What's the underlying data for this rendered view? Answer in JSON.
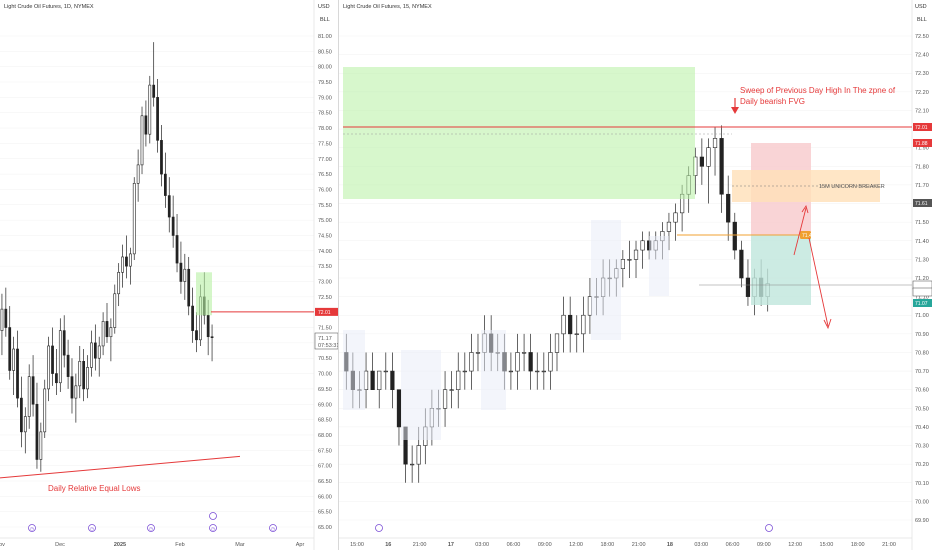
{
  "left_chart": {
    "title": "Light Crude Oil Futures, 1D, NYMEX",
    "currency": "USD",
    "unit": "BLL",
    "y_ticks": [
      "81.00",
      "80.50",
      "80.00",
      "79.50",
      "79.00",
      "78.50",
      "78.00",
      "77.50",
      "77.00",
      "76.50",
      "76.00",
      "75.50",
      "75.00",
      "74.50",
      "74.00",
      "73.50",
      "73.00",
      "72.50",
      "72.00",
      "71.50",
      "71.00",
      "70.50",
      "70.00",
      "69.50",
      "69.00",
      "68.50",
      "68.00",
      "67.50",
      "67.00",
      "66.50",
      "66.00",
      "65.50",
      "65.00"
    ],
    "x_ticks": [
      "Nov",
      "Dec",
      "2025",
      "Feb",
      "Mar",
      "Apr"
    ],
    "price_badges": [
      {
        "text": "72.01",
        "color": "#e5393a"
      },
      {
        "text": "71.17",
        "color": "#ffffff"
      },
      {
        "text": "07:53:31",
        "color": "#ffffff"
      }
    ],
    "level_line_color": "#e5393a",
    "annotation": "Daily Relative Equal Lows",
    "chart_data": {
      "type": "candlestick",
      "title": "Light Crude Oil Futures, 1D, NYMEX",
      "ylabel": "USD",
      "ylim": [
        65.0,
        81.0
      ],
      "candles": [
        [
          71.4,
          72.6,
          70.6,
          72.1
        ],
        [
          72.1,
          72.8,
          71.2,
          71.5
        ],
        [
          71.5,
          72.2,
          69.8,
          70.1
        ],
        [
          70.1,
          71.2,
          69.3,
          70.8
        ],
        [
          70.8,
          71.4,
          68.9,
          69.2
        ],
        [
          69.2,
          69.9,
          67.6,
          68.1
        ],
        [
          68.1,
          68.9,
          67.4,
          68.6
        ],
        [
          68.6,
          70.3,
          68.2,
          69.9
        ],
        [
          69.9,
          70.6,
          68.6,
          69.0
        ],
        [
          69.0,
          69.7,
          66.9,
          67.2
        ],
        [
          67.2,
          68.4,
          66.8,
          68.1
        ],
        [
          68.1,
          69.8,
          67.9,
          69.5
        ],
        [
          69.5,
          71.2,
          69.1,
          70.9
        ],
        [
          70.9,
          71.5,
          69.6,
          70.0
        ],
        [
          70.0,
          70.8,
          69.3,
          69.7
        ],
        [
          69.7,
          71.8,
          69.4,
          71.4
        ],
        [
          71.4,
          71.9,
          70.2,
          70.6
        ],
        [
          70.6,
          71.1,
          69.5,
          69.9
        ],
        [
          69.9,
          70.5,
          68.7,
          69.2
        ],
        [
          69.2,
          70.0,
          68.4,
          69.6
        ],
        [
          69.6,
          70.9,
          69.2,
          70.4
        ],
        [
          70.4,
          70.8,
          69.1,
          69.5
        ],
        [
          69.5,
          70.6,
          69.2,
          70.2
        ],
        [
          70.2,
          71.4,
          69.9,
          71.0
        ],
        [
          71.0,
          71.6,
          70.1,
          70.5
        ],
        [
          70.5,
          71.2,
          69.9,
          70.9
        ],
        [
          70.9,
          72.0,
          70.6,
          71.7
        ],
        [
          71.7,
          72.3,
          71.0,
          71.2
        ],
        [
          71.2,
          71.8,
          70.4,
          71.5
        ],
        [
          71.5,
          72.9,
          71.3,
          72.6
        ],
        [
          72.6,
          73.6,
          72.2,
          73.3
        ],
        [
          73.3,
          74.2,
          72.8,
          73.8
        ],
        [
          73.8,
          74.5,
          73.1,
          73.5
        ],
        [
          73.5,
          74.1,
          72.9,
          73.9
        ],
        [
          73.9,
          76.4,
          73.7,
          76.2
        ],
        [
          76.2,
          77.3,
          75.6,
          76.8
        ],
        [
          76.8,
          78.7,
          76.5,
          78.4
        ],
        [
          78.4,
          78.9,
          77.4,
          77.8
        ],
        [
          77.8,
          79.7,
          77.5,
          79.4
        ],
        [
          79.4,
          80.8,
          78.7,
          79.0
        ],
        [
          79.0,
          79.6,
          77.2,
          77.6
        ],
        [
          77.6,
          78.1,
          76.1,
          76.5
        ],
        [
          76.5,
          77.2,
          75.4,
          75.8
        ],
        [
          75.8,
          76.4,
          74.6,
          75.1
        ],
        [
          75.1,
          75.8,
          74.1,
          74.5
        ],
        [
          74.5,
          75.2,
          73.3,
          73.6
        ],
        [
          73.6,
          74.3,
          72.6,
          73.0
        ],
        [
          73.0,
          73.9,
          72.4,
          73.4
        ],
        [
          73.4,
          73.8,
          71.9,
          72.2
        ],
        [
          72.2,
          72.8,
          71.0,
          71.4
        ],
        [
          71.4,
          72.0,
          70.7,
          71.1
        ],
        [
          71.1,
          72.9,
          70.9,
          72.5
        ],
        [
          72.5,
          73.3,
          71.6,
          71.9
        ],
        [
          71.9,
          72.4,
          70.6,
          71.2
        ],
        [
          71.2,
          71.6,
          70.4,
          71.17
        ]
      ]
    }
  },
  "right_chart": {
    "title": "Light Crude Oil Futures, 15, NYMEX",
    "currency": "USD",
    "unit": "BLL",
    "y_ticks": [
      "72.50",
      "72.40",
      "72.30",
      "72.20",
      "72.10",
      "72.00",
      "71.90",
      "71.80",
      "71.70",
      "71.60",
      "71.50",
      "71.40",
      "71.30",
      "71.20",
      "71.10",
      "71.00",
      "70.90",
      "70.80",
      "70.70",
      "70.60",
      "70.50",
      "70.40",
      "70.30",
      "70.20",
      "70.10",
      "70.00",
      "69.90"
    ],
    "x_ticks": [
      "15:00",
      "16",
      "21:00",
      "17",
      "03:00",
      "06:00",
      "09:00",
      "12:00",
      "18:00",
      "21:00",
      "18",
      "03:00",
      "06:00",
      "09:00",
      "12:00",
      "15:00",
      "18:00",
      "21:00"
    ],
    "price_badges": [
      {
        "text": "72.01",
        "color": "#e5393a"
      },
      {
        "text": "71.88",
        "color": "#e5393a"
      },
      {
        "text": "71.61",
        "color": "#555555"
      },
      {
        "text": "71.17",
        "color": "#ffffff"
      },
      {
        "text": "08:21",
        "color": "#ffffff"
      },
      {
        "text": "71.07",
        "color": "#26a69a"
      }
    ],
    "annotation_sweep_line1": "Sweep of Previous Day High In The zpne of",
    "annotation_sweep_line2": "Daily  bearish FVG",
    "unicorn_label": "15M UNICORN BREAKER",
    "entry_tag": "71.4",
    "fvg_zone_color": "#b7f0a3",
    "stop_zone_color": "#f8c9cc",
    "target_zone_color": "#bfe6dc",
    "breaker_zone_color": "#ffe0b8",
    "chart_data": {
      "type": "candlestick",
      "title": "Light Crude Oil Futures, 15, NYMEX",
      "ylabel": "USD",
      "ylim": [
        69.9,
        72.5
      ],
      "candles": [
        [
          70.8,
          70.9,
          70.6,
          70.7
        ],
        [
          70.7,
          70.8,
          70.5,
          70.6
        ],
        [
          70.6,
          70.7,
          70.5,
          70.6
        ],
        [
          70.6,
          70.8,
          70.5,
          70.7
        ],
        [
          70.7,
          70.8,
          70.6,
          70.6
        ],
        [
          70.6,
          70.7,
          70.5,
          70.7
        ],
        [
          70.7,
          70.8,
          70.6,
          70.7
        ],
        [
          70.7,
          70.8,
          70.5,
          70.6
        ],
        [
          70.6,
          70.6,
          70.3,
          70.4
        ],
        [
          70.4,
          70.4,
          70.1,
          70.2
        ],
        [
          70.2,
          70.3,
          70.1,
          70.2
        ],
        [
          70.2,
          70.4,
          70.1,
          70.3
        ],
        [
          70.3,
          70.5,
          70.2,
          70.4
        ],
        [
          70.4,
          70.6,
          70.3,
          70.5
        ],
        [
          70.5,
          70.6,
          70.4,
          70.5
        ],
        [
          70.5,
          70.7,
          70.4,
          70.6
        ],
        [
          70.6,
          70.7,
          70.5,
          70.6
        ],
        [
          70.6,
          70.8,
          70.5,
          70.7
        ],
        [
          70.7,
          70.8,
          70.6,
          70.7
        ],
        [
          70.7,
          70.9,
          70.6,
          70.8
        ],
        [
          70.8,
          70.9,
          70.7,
          70.8
        ],
        [
          70.8,
          71.0,
          70.7,
          70.9
        ],
        [
          70.9,
          71.0,
          70.7,
          70.8
        ],
        [
          70.8,
          70.9,
          70.7,
          70.8
        ],
        [
          70.8,
          70.9,
          70.6,
          70.7
        ],
        [
          70.7,
          70.8,
          70.6,
          70.7
        ],
        [
          70.7,
          70.9,
          70.6,
          70.8
        ],
        [
          70.8,
          70.9,
          70.7,
          70.8
        ],
        [
          70.8,
          70.9,
          70.6,
          70.7
        ],
        [
          70.7,
          70.8,
          70.6,
          70.7
        ],
        [
          70.7,
          70.8,
          70.6,
          70.7
        ],
        [
          70.7,
          70.9,
          70.6,
          70.8
        ],
        [
          70.8,
          70.9,
          70.7,
          70.9
        ],
        [
          70.9,
          71.1,
          70.8,
          71.0
        ],
        [
          71.0,
          71.1,
          70.8,
          70.9
        ],
        [
          70.9,
          71.0,
          70.8,
          70.9
        ],
        [
          70.9,
          71.1,
          70.8,
          71.0
        ],
        [
          71.0,
          71.2,
          70.9,
          71.1
        ],
        [
          71.1,
          71.2,
          71.0,
          71.1
        ],
        [
          71.1,
          71.3,
          71.0,
          71.2
        ],
        [
          71.2,
          71.3,
          71.1,
          71.2
        ],
        [
          71.2,
          71.3,
          71.1,
          71.25
        ],
        [
          71.25,
          71.35,
          71.15,
          71.3
        ],
        [
          71.3,
          71.4,
          71.2,
          71.3
        ],
        [
          71.3,
          71.4,
          71.2,
          71.35
        ],
        [
          71.35,
          71.45,
          71.25,
          71.4
        ],
        [
          71.4,
          71.45,
          71.3,
          71.35
        ],
        [
          71.35,
          71.45,
          71.3,
          71.4
        ],
        [
          71.4,
          71.5,
          71.3,
          71.45
        ],
        [
          71.45,
          71.55,
          71.35,
          71.5
        ],
        [
          71.5,
          71.6,
          71.4,
          71.55
        ],
        [
          71.55,
          71.7,
          71.45,
          71.65
        ],
        [
          71.65,
          71.8,
          71.55,
          71.75
        ],
        [
          71.75,
          71.9,
          71.65,
          71.85
        ],
        [
          71.85,
          71.95,
          71.7,
          71.8
        ],
        [
          71.8,
          71.95,
          71.6,
          71.9
        ],
        [
          71.9,
          72.01,
          71.75,
          71.95
        ],
        [
          71.95,
          72.02,
          71.55,
          71.65
        ],
        [
          71.65,
          71.75,
          71.4,
          71.5
        ],
        [
          71.5,
          71.55,
          71.3,
          71.35
        ],
        [
          71.35,
          71.4,
          71.15,
          71.2
        ],
        [
          71.2,
          71.3,
          71.05,
          71.1
        ],
        [
          71.1,
          71.25,
          71.0,
          71.2
        ],
        [
          71.2,
          71.3,
          71.05,
          71.1
        ],
        [
          71.1,
          71.25,
          71.02,
          71.17
        ]
      ]
    }
  },
  "event_markers": [
    "earnings-icon",
    "dividend-icon",
    "flag-icon"
  ]
}
